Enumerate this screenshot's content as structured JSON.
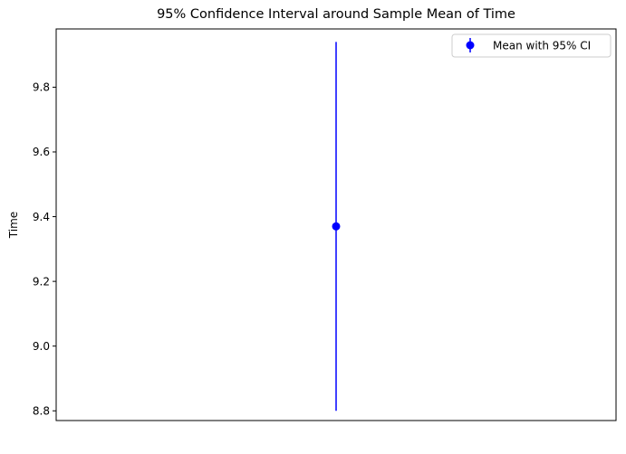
{
  "chart_data": {
    "type": "scatter",
    "title": "95% Confidence Interval around Sample Mean of Time",
    "xlabel": "",
    "ylabel": "Time",
    "ylim": [
      8.77,
      9.98
    ],
    "xlim": [
      -0.1,
      0.1
    ],
    "yticks": [
      8.8,
      9.0,
      9.2,
      9.4,
      9.6,
      9.8
    ],
    "ytick_labels": [
      "8.8",
      "9.0",
      "9.2",
      "9.4",
      "9.6",
      "9.8"
    ],
    "show_xticks": false,
    "grid": false,
    "legend_position": "top-right",
    "series": [
      {
        "name": "Mean with 95% CI",
        "color": "#0000ff",
        "x": [
          0
        ],
        "mean": [
          9.37
        ],
        "ci_lower": [
          8.8
        ],
        "ci_upper": [
          9.94
        ]
      }
    ]
  }
}
